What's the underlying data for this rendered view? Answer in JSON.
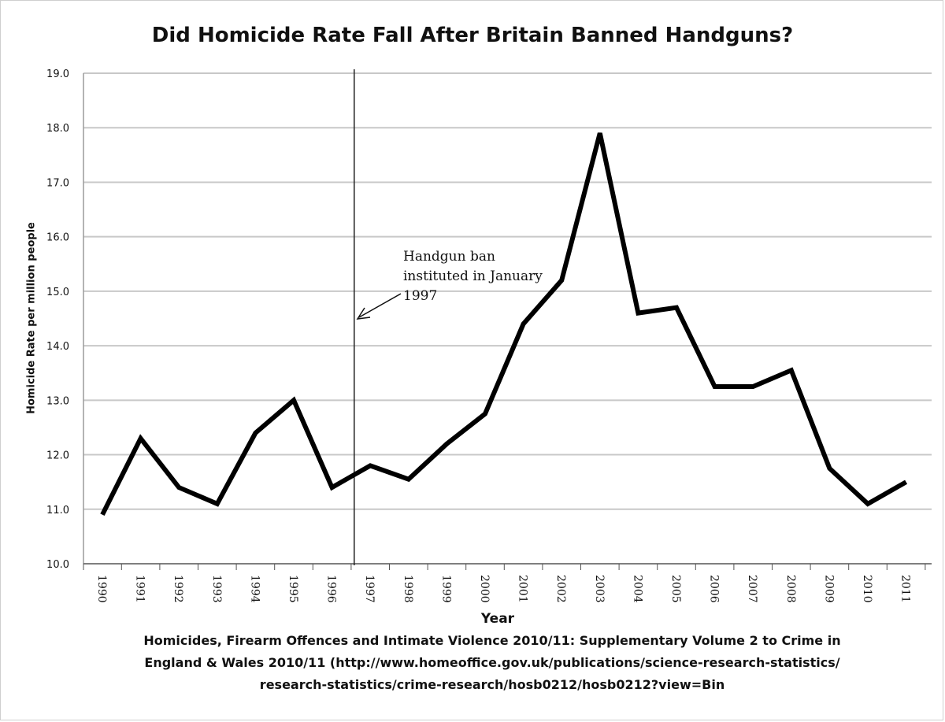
{
  "chart_data": {
    "type": "line",
    "title": "Did Homicide Rate Fall After Britain Banned Handguns?",
    "xlabel": "Year",
    "ylabel": "Homicide Rate per million people",
    "categories": [
      "1990",
      "1991",
      "1992",
      "1993",
      "1994",
      "1995",
      "1996",
      "1997",
      "1998",
      "1999",
      "2000",
      "2001",
      "2002",
      "2003",
      "2004",
      "2005",
      "2006",
      "2007",
      "2008",
      "2009",
      "2010",
      "2011"
    ],
    "x": [
      1990,
      1991,
      1992,
      1993,
      1994,
      1995,
      1996,
      1996.5,
      1997,
      1998,
      1999,
      2000,
      2001,
      2002,
      2003,
      2004,
      2005,
      2006,
      2007,
      2008,
      2009,
      2010,
      2011
    ],
    "series": [
      {
        "values": [
          10.9,
          12.3,
          11.4,
          11.1,
          12.4,
          13.0,
          11.4,
          11.6,
          11.8,
          11.55,
          12.2,
          12.75,
          14.4,
          15.2,
          17.9,
          14.6,
          14.7,
          13.25,
          13.25,
          13.55,
          11.75,
          11.1,
          11.5
        ]
      }
    ],
    "ylim": [
      10.0,
      19.0
    ],
    "yticks": [
      "10.0",
      "11.0",
      "12.0",
      "13.0",
      "14.0",
      "15.0",
      "16.0",
      "17.0",
      "18.0",
      "19.0"
    ],
    "grid": true,
    "line_color": "#000000",
    "grid_color": "#c8c8c8",
    "annotation": {
      "lines": [
        "Handgun ban",
        "instituted in January",
        "1997"
      ],
      "marker_x": 1996.58
    },
    "source": [
      "Homicides, Firearm Offences and Intimate Violence 2010/11: Supplementary Volume 2 to Crime in",
      "England & Wales 2010/11 (http://www.homeoffice.gov.uk/publications/science-research-statistics/",
      "research-statistics/crime-research/hosb0212/hosb0212?view=Bin"
    ]
  }
}
